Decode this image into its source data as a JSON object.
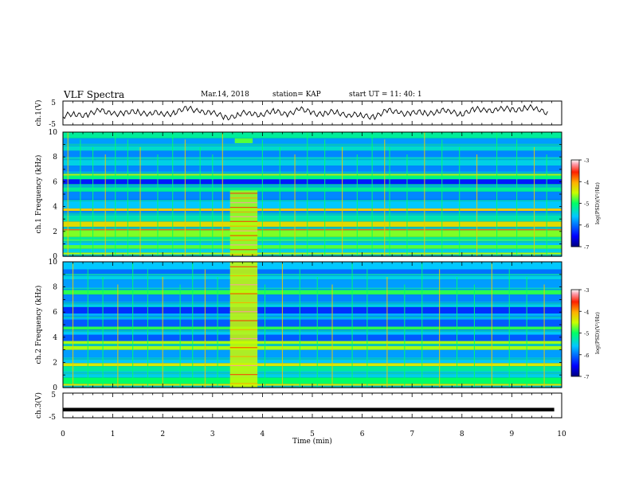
{
  "header": {
    "title": "VLF Spectra",
    "date": "Mar.14, 2018",
    "station": "station= KAP",
    "start": "start  UT =   11: 40: 1"
  },
  "chart_data": [
    {
      "type": "line",
      "panel": "ch1-waveform",
      "ylabel": "ch.1(V)",
      "ylim": [
        -5,
        5
      ],
      "yticks": [
        "5",
        "-5"
      ],
      "xlim": [
        0,
        10
      ],
      "series": [
        {
          "color": "#000000",
          "x": [
            0,
            0.25,
            0.5,
            0.75,
            1,
            1.25,
            1.5,
            1.75,
            2,
            2.25,
            2.5,
            2.75,
            3,
            3.25,
            3.5,
            3.75,
            4,
            4.25,
            4.5,
            4.75,
            5,
            5.25,
            5.5,
            5.75,
            6,
            6.25,
            6.5,
            6.75,
            7,
            7.25,
            7.5,
            7.75,
            8,
            8.25,
            8.5,
            8.75,
            9,
            9.25,
            9.5,
            9.75
          ],
          "values": [
            -1.5,
            -0.8,
            -0.2,
            0.5,
            0.3,
            -0.5,
            0.8,
            -0.2,
            -0.5,
            0.6,
            1.5,
            1.2,
            -0.5,
            -1.5,
            -1.0,
            0.0,
            -0.3,
            0.3,
            0.0,
            1.0,
            0.5,
            -0.5,
            0.3,
            -0.5,
            -1.5,
            -1.0,
            0.5,
            0.5,
            -0.3,
            0.0,
            0.8,
            0.5,
            0.0,
            1.0,
            1.5,
            1.2,
            1.5,
            2.2,
            1.5,
            0.5
          ]
        }
      ]
    },
    {
      "type": "heatmap",
      "panel": "ch1-spectrogram",
      "ylabel": "ch.1 Frequency (kHz)",
      "ylim": [
        0,
        10
      ],
      "yticks": [
        0,
        2,
        4,
        6,
        8,
        10
      ],
      "xlim": [
        0,
        10
      ],
      "colorbar": {
        "label": "log(PSD)(V²/Hz)",
        "range": [
          -7,
          -3
        ],
        "ticks": [
          "-3",
          "-4",
          "-5",
          "-6",
          "-7"
        ]
      },
      "band_khz": [
        [
          0.0,
          0.3,
          -4.6
        ],
        [
          0.3,
          0.6,
          -5.5
        ],
        [
          0.6,
          0.9,
          -4.8
        ],
        [
          0.9,
          1.1,
          -5.6
        ],
        [
          1.1,
          1.35,
          -4.8
        ],
        [
          1.35,
          1.55,
          -5.2
        ],
        [
          1.55,
          2.1,
          -4.7
        ],
        [
          2.1,
          2.35,
          -3.8
        ],
        [
          2.35,
          2.8,
          -4.3
        ],
        [
          2.8,
          3.4,
          -5.3
        ],
        [
          3.4,
          3.65,
          -5.9
        ],
        [
          3.65,
          3.85,
          -4.2
        ],
        [
          3.85,
          4.6,
          -5.6
        ],
        [
          4.6,
          5.2,
          -5.9
        ],
        [
          5.2,
          5.8,
          -5.2
        ],
        [
          5.8,
          6.2,
          -6.4
        ],
        [
          6.2,
          6.5,
          -5.1
        ],
        [
          6.5,
          6.75,
          -4.6
        ],
        [
          6.75,
          7.3,
          -5.9
        ],
        [
          7.3,
          8.0,
          -5.5
        ],
        [
          8.0,
          8.5,
          -5.9
        ],
        [
          8.5,
          9.0,
          -5.4
        ],
        [
          9.0,
          9.5,
          -5.8
        ],
        [
          9.5,
          10.0,
          -5.2
        ]
      ],
      "burst": {
        "t_start": 3.35,
        "t_end": 3.9,
        "f_max_khz": 5.3,
        "value": -4.6,
        "note": "9.4",
        "note_f_khz": 9.3
      },
      "spikes_min": [
        0.1,
        0.35,
        0.6,
        0.85,
        1.05,
        1.3,
        1.55,
        1.9,
        2.2,
        2.45,
        2.75,
        3.0,
        3.2,
        4.0,
        4.35,
        4.65,
        4.9,
        5.25,
        5.6,
        5.9,
        6.2,
        6.45,
        6.55,
        6.9,
        7.25,
        7.6,
        7.95,
        8.3,
        8.7,
        9.1,
        9.45,
        9.7
      ]
    },
    {
      "type": "heatmap",
      "panel": "ch2-spectrogram",
      "ylabel": "ch.2 Frequency (kHz)",
      "ylim": [
        0,
        10
      ],
      "yticks": [
        0,
        2,
        4,
        6,
        8,
        10
      ],
      "xlim": [
        0,
        10
      ],
      "colorbar": {
        "label": "log(PSD)(V²/Hz)",
        "range": [
          -7,
          -3
        ],
        "ticks": [
          "-3",
          "-4",
          "-5",
          "-6",
          "-7"
        ]
      },
      "band_khz": [
        [
          0.0,
          0.3,
          -4.4
        ],
        [
          0.3,
          0.8,
          -5.0
        ],
        [
          0.8,
          1.3,
          -5.5
        ],
        [
          1.3,
          1.7,
          -5.2
        ],
        [
          1.7,
          1.95,
          -4.4
        ],
        [
          1.95,
          2.4,
          -5.6
        ],
        [
          2.4,
          3.0,
          -5.8
        ],
        [
          3.0,
          3.7,
          -4.6
        ],
        [
          3.7,
          4.2,
          -6.1
        ],
        [
          4.2,
          4.6,
          -5.6
        ],
        [
          4.6,
          4.85,
          -4.9
        ],
        [
          4.85,
          5.4,
          -6.1
        ],
        [
          5.4,
          5.9,
          -5.7
        ],
        [
          5.9,
          6.4,
          -6.3
        ],
        [
          6.4,
          6.7,
          -5.5
        ],
        [
          6.7,
          7.4,
          -5.9
        ],
        [
          7.4,
          7.75,
          -4.9
        ],
        [
          7.75,
          8.6,
          -5.8
        ],
        [
          8.6,
          9.0,
          -5.5
        ],
        [
          9.0,
          9.4,
          -6.0
        ],
        [
          9.4,
          10.0,
          -5.6
        ]
      ],
      "burst": {
        "t_start": 3.35,
        "t_end": 3.9,
        "f_max_khz": 10,
        "value": -4.5,
        "note": "",
        "note_f_khz": 0
      },
      "spikes_min": [
        0.2,
        0.5,
        0.8,
        1.1,
        1.4,
        1.7,
        2.0,
        2.35,
        2.6,
        2.85,
        3.1,
        4.05,
        4.4,
        4.75,
        5.1,
        5.4,
        5.8,
        6.1,
        6.5,
        6.85,
        7.2,
        7.55,
        7.9,
        8.25,
        8.6,
        8.95,
        9.3,
        9.65
      ]
    },
    {
      "type": "line",
      "panel": "ch3-waveform",
      "ylabel": "ch.3(V)",
      "ylim": [
        -5,
        5
      ],
      "yticks": [
        "5",
        "-5"
      ],
      "xlim": [
        0,
        10
      ],
      "xlabel": "Time (min)",
      "xticks": [
        "0",
        "1",
        "2",
        "3",
        "4",
        "5",
        "6",
        "7",
        "8",
        "9",
        "10"
      ],
      "series": [
        {
          "color": "#000000",
          "x": [
            0,
            9.85
          ],
          "values": [
            -1.7,
            -1.7
          ]
        }
      ]
    }
  ]
}
